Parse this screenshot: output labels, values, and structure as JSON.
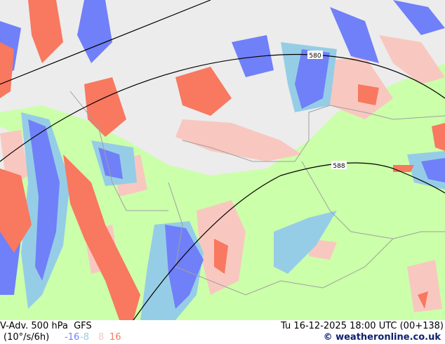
{
  "title": "V-Adv. 500 hPa",
  "model": "GFS",
  "units": "(10°/s/6h)",
  "datetime": "Tu 16-12-2025 18:00 UTC (00+138)",
  "credit": "© weatheronline.co.uk",
  "legend": [
    {
      "label": "-16",
      "color": "#7080f8"
    },
    {
      "label": "-8",
      "color": "#96cde6"
    },
    {
      "label": "8",
      "color": "#f8c8c0"
    },
    {
      "label": "16",
      "color": "#f87860"
    }
  ],
  "contour_labels": [
    "580",
    "588"
  ],
  "colors": {
    "background": "#ccffaa",
    "neutral": "#ececec"
  }
}
